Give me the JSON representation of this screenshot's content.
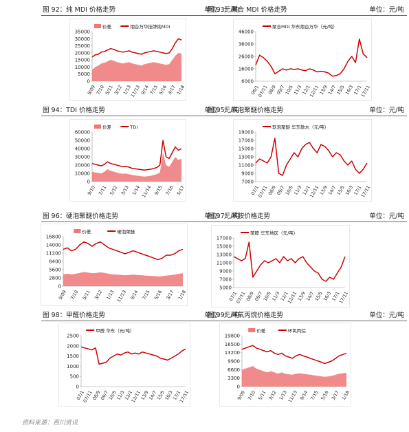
{
  "source": "资料来源：百川资讯",
  "chart_data": [
    {
      "id": "c92",
      "caption": "图 92：纯 MDI 价格走势",
      "unit": "单位：元/吨",
      "type": "area_line",
      "legend": [
        "价差",
        "烟台万华挂牌纯MDI"
      ],
      "yticks": [
        "35000",
        "30000",
        "25000",
        "20000",
        "15000",
        "10000",
        "5000",
        "0"
      ],
      "ylim": [
        0,
        35000
      ],
      "xticks": [
        "9/09",
        "7/10",
        "5/11",
        "3/12",
        "1/13",
        "11/13",
        "9/14",
        "7/15",
        "5/16",
        "3/17",
        "1/18"
      ],
      "line": [
        17000,
        18500,
        19000,
        20500,
        21000,
        22000,
        23000,
        22500,
        21500,
        21000,
        20500,
        21000,
        21500,
        20500,
        20000,
        19500,
        19000,
        20000,
        20500,
        21000,
        21500,
        21000,
        20500,
        20000,
        19500,
        20000,
        23000,
        27000,
        30000,
        29000
      ],
      "area": [
        8000,
        10000,
        11000,
        12500,
        13000,
        14000,
        15000,
        14500,
        13500,
        13000,
        12500,
        13000,
        13500,
        12500,
        12000,
        11500,
        11000,
        12000,
        12500,
        13000,
        13500,
        13000,
        12500,
        12000,
        11500,
        12000,
        15000,
        18000,
        20000,
        19500
      ],
      "colors": {
        "line": "#cc0000",
        "area": "#ee7777"
      }
    },
    {
      "id": "c93",
      "caption": "图 93：聚合 MDI 价格走势",
      "unit": "单位：元/吨",
      "type": "line",
      "legend": [
        "聚合MDI 华东烟台万华（元/吨）"
      ],
      "yticks": [
        "46000",
        "36000",
        "26000",
        "16000",
        "6000"
      ],
      "ylim": [
        6000,
        46000
      ],
      "xticks": [
        "06/1",
        "07/11",
        "08/9",
        "09/7",
        "10/5",
        "11/3",
        "12/1",
        "12/11",
        "13/9",
        "14/7",
        "15/5",
        "16/3",
        "17/1",
        "17/11"
      ],
      "line": [
        19000,
        27000,
        25000,
        22000,
        18000,
        12000,
        14000,
        16000,
        15000,
        16000,
        15500,
        16000,
        15000,
        14500,
        16000,
        15000,
        13500,
        14000,
        13500,
        12500,
        10000,
        10500,
        12000,
        16000,
        22000,
        26000,
        21000,
        40000,
        28000,
        25000
      ],
      "colors": {
        "line": "#cc0000"
      }
    },
    {
      "id": "c94",
      "caption": "图 94：TDI 价格走势",
      "unit": "单位：元/吨",
      "type": "area_line",
      "legend": [
        "价差",
        "TDI"
      ],
      "yticks": [
        "60000",
        "50000",
        "40000",
        "30000",
        "20000",
        "10000",
        "0"
      ],
      "ylim": [
        0,
        60000
      ],
      "xticks": [
        "9/10",
        "7/11",
        "5/12",
        "3/13",
        "1/14",
        "11/14",
        "9/15",
        "7/16",
        "5/17"
      ],
      "line": [
        22000,
        21000,
        20000,
        19000,
        21000,
        24000,
        22000,
        21000,
        20000,
        19000,
        18000,
        18500,
        17500,
        16000,
        15500,
        15000,
        14500,
        14000,
        14500,
        15000,
        16000,
        17000,
        20000,
        50000,
        30000,
        28000,
        35000,
        42000,
        38000,
        40000
      ],
      "area": [
        12000,
        11000,
        10500,
        10000,
        12000,
        15000,
        13000,
        12000,
        11000,
        10000,
        9500,
        9800,
        9000,
        8000,
        7500,
        7000,
        6500,
        6000,
        6500,
        7000,
        8000,
        9000,
        11000,
        35000,
        20000,
        18000,
        24000,
        30000,
        26000,
        28000
      ],
      "colors": {
        "line": "#cc0000",
        "area": "#ee7777"
      }
    },
    {
      "id": "c95",
      "caption": "图 95：软泡聚醚价格走势",
      "unit": "单位：元/吨",
      "type": "line",
      "legend": [
        "软泡聚醚 华东散水（元/吨）"
      ],
      "yticks": [
        "19000",
        "17000",
        "15000",
        "13000",
        "11000",
        "9000",
        "7000"
      ],
      "ylim": [
        7000,
        19000
      ],
      "xticks": [
        "07/1",
        "07/11",
        "08/9",
        "09/7",
        "10/5",
        "11/3",
        "12/1",
        "12/11",
        "13/9",
        "14/7",
        "15/5",
        "16/3",
        "17/1",
        "17/11"
      ],
      "line": [
        11500,
        12500,
        12000,
        11500,
        13000,
        17500,
        9000,
        8500,
        11000,
        12500,
        14000,
        13000,
        15000,
        16000,
        16500,
        15000,
        14000,
        16000,
        15500,
        14500,
        13000,
        14000,
        13500,
        12000,
        11000,
        12000,
        10000,
        9000,
        10000,
        11500
      ],
      "colors": {
        "line": "#cc0000"
      }
    },
    {
      "id": "c96",
      "caption": "图 96：硬泡聚醚价格走势",
      "unit": "单位：元/吨",
      "type": "area_line",
      "legend": [
        "价差",
        "硬泡聚醚"
      ],
      "yticks": [
        "16800",
        "14000",
        "11200",
        "8400",
        "5600",
        "2800",
        "0"
      ],
      "ylim": [
        0,
        16800
      ],
      "xticks": [
        "9/09",
        "7/10",
        "5/11",
        "3/12",
        "1/13",
        "11/13",
        "9/14",
        "7/15",
        "5/16",
        "3/17",
        "1/18"
      ],
      "line": [
        12500,
        13000,
        12000,
        12500,
        14000,
        15000,
        14500,
        13500,
        14500,
        15000,
        14000,
        13000,
        12500,
        12000,
        11500,
        11000,
        11500,
        12000,
        11500,
        11000,
        10500,
        10000,
        9500,
        9000,
        9500,
        10500,
        10500,
        11000,
        12000,
        12500
      ],
      "area": [
        4000,
        4200,
        4000,
        4200,
        4500,
        4800,
        4600,
        4400,
        4500,
        4700,
        4500,
        4200,
        4000,
        3900,
        3800,
        3700,
        3800,
        3900,
        3800,
        3700,
        3600,
        3500,
        3400,
        3300,
        3400,
        3600,
        3700,
        3900,
        4200,
        4400
      ],
      "colors": {
        "line": "#cc0000",
        "area": "#ee7777"
      }
    },
    {
      "id": "c97",
      "caption": "图 97：苯胺价格走势",
      "unit": "单位：元/吨",
      "type": "line",
      "legend": [
        "苯胺 华东地区（元/吨）"
      ],
      "yticks": [
        "17000",
        "15000",
        "13000",
        "11000",
        "9000",
        "7000",
        "5000"
      ],
      "ylim": [
        5000,
        17000
      ],
      "xticks": [
        "07/1",
        "07/11",
        "08/9",
        "09/7",
        "10/5",
        "11/3",
        "12/1",
        "12/11",
        "13/9",
        "14/7",
        "15/5",
        "16/3",
        "17/1",
        "17/11"
      ],
      "line": [
        12500,
        12000,
        11500,
        12000,
        16000,
        7500,
        9000,
        10500,
        11500,
        11000,
        11500,
        12000,
        11000,
        12500,
        11500,
        12000,
        11000,
        12000,
        12500,
        11000,
        10000,
        9000,
        8500,
        7000,
        6500,
        7500,
        7000,
        8500,
        10000,
        12500
      ],
      "colors": {
        "line": "#cc0000"
      }
    },
    {
      "id": "c98",
      "caption": "图 98：甲醛价格走势",
      "unit": "单位：元/吨",
      "type": "line",
      "legend": [
        "甲醛 华东（元/吨）"
      ],
      "yticks": [
        "2500",
        "2000",
        "1500",
        "1000",
        "500",
        "0"
      ],
      "ylim": [
        0,
        2500
      ],
      "xticks": [
        "07/1",
        "07/11",
        "08/9",
        "09/7",
        "10/5",
        "11/3",
        "12/1",
        "12/11",
        "13/9",
        "14/7",
        "15/5",
        "16/3",
        "17/1",
        "17/11"
      ],
      "line": [
        1950,
        1900,
        1850,
        1800,
        1900,
        1100,
        1150,
        1200,
        1400,
        1500,
        1600,
        1550,
        1650,
        1700,
        1600,
        1650,
        1600,
        1700,
        1650,
        1600,
        1550,
        1500,
        1400,
        1350,
        1300,
        1400,
        1500,
        1600,
        1750,
        1850
      ],
      "colors": {
        "line": "#cc0000"
      }
    },
    {
      "id": "c99",
      "caption": "图 99：环氧丙烷价格走势",
      "unit": "单位：元/吨",
      "type": "area_line",
      "legend": [
        "价差",
        "环氧丙烷"
      ],
      "yticks": [
        "19800",
        "16500",
        "13200",
        "9900",
        "6600",
        "3300",
        "0"
      ],
      "ylim": [
        0,
        19800
      ],
      "xticks": [
        "9/09",
        "7/10",
        "5/11",
        "3/12",
        "1/13",
        "11/13",
        "9/14",
        "7/15",
        "5/16",
        "3/17",
        "1/18"
      ],
      "line": [
        14500,
        15000,
        15500,
        16000,
        15000,
        14500,
        14000,
        13500,
        14000,
        13000,
        12500,
        13000,
        12000,
        11500,
        11000,
        12000,
        12500,
        12000,
        11500,
        11000,
        10500,
        10000,
        9500,
        9000,
        9500,
        10000,
        11000,
        12000,
        12500,
        13000
      ],
      "area": [
        6500,
        7000,
        7500,
        8000,
        7000,
        6500,
        6000,
        5500,
        6000,
        5500,
        5000,
        5500,
        5000,
        4800,
        4600,
        5000,
        5200,
        5000,
        4800,
        4600,
        4400,
        4200,
        4000,
        3800,
        4000,
        4200,
        4600,
        5000,
        5200,
        5400
      ],
      "colors": {
        "line": "#cc0000",
        "area": "#ee7777"
      }
    }
  ]
}
